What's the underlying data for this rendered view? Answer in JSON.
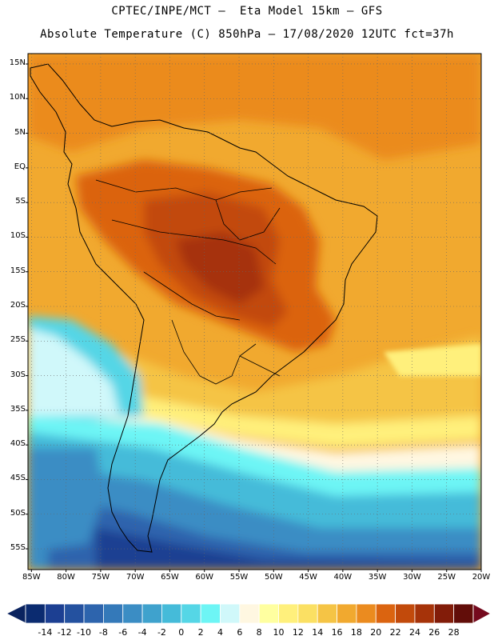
{
  "header": {
    "line1": "CPTEC/INPE/MCT –  Eta Model 15km – GFS",
    "line2": "Absolute Temperature (C) 850hPa – 17/08/2020 12UTC fct=37h"
  },
  "map": {
    "lat_labels": [
      "15N",
      "10N",
      "5N",
      "EQ",
      "5S",
      "10S",
      "15S",
      "20S",
      "25S",
      "30S",
      "35S",
      "40S",
      "45S",
      "50S",
      "55S"
    ],
    "lat_values": [
      15,
      10,
      5,
      0,
      -5,
      -10,
      -15,
      -20,
      -25,
      -30,
      -35,
      -40,
      -45,
      -50,
      -55
    ],
    "lon_labels": [
      "85W",
      "80W",
      "75W",
      "70W",
      "65W",
      "60W",
      "55W",
      "50W",
      "45W",
      "40W",
      "35W",
      "30W",
      "25W",
      "20W"
    ],
    "lon_values": [
      -85,
      -80,
      -75,
      -70,
      -65,
      -60,
      -55,
      -50,
      -45,
      -40,
      -35,
      -30,
      -25,
      -20
    ],
    "extent": {
      "lon_min": -85.5,
      "lon_max": -20,
      "lat_min": -58,
      "lat_max": 16.5
    },
    "gridlines": true
  },
  "colorbar": {
    "labels": [
      "-14",
      "-12",
      "-10",
      "-8",
      "-6",
      "-4",
      "-2",
      "0",
      "2",
      "4",
      "6",
      "8",
      "10",
      "12",
      "14",
      "16",
      "18",
      "20",
      "22",
      "24",
      "26",
      "28"
    ],
    "colors": [
      "#0b2b70",
      "#1c3f92",
      "#24519f",
      "#2d64ad",
      "#3479b9",
      "#3b8dc4",
      "#3fa2cd",
      "#45bbd9",
      "#55d6e6",
      "#6df5f5",
      "#d0f8fa",
      "#fff7e1",
      "#ffffa0",
      "#fff07c",
      "#fbe063",
      "#f5c445",
      "#f1a92f",
      "#eb8b1f",
      "#db6410",
      "#c24a0b",
      "#a63309",
      "#821c09",
      "#620d09"
    ],
    "under_color": "#0a235f",
    "over_color": "#750a1e"
  },
  "colors": {
    "warm_core": "#b8520d",
    "mid_warm": "#e8901f",
    "yellow": "#f7c94a",
    "cold_light": "#55d6e6",
    "cold_deep": "#1a3a8e"
  }
}
